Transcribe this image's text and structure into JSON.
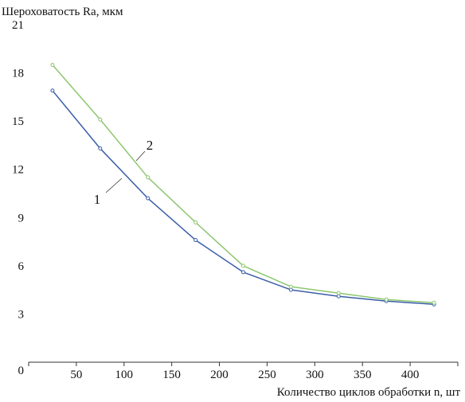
{
  "chart_data": {
    "type": "line",
    "ylabel": "Шероховатость Ra, мкм",
    "xlabel": "Количество циклов обработки n, шт",
    "xlim": [
      0,
      450
    ],
    "ylim": [
      0,
      21
    ],
    "xticks": [
      "50",
      "100",
      "150",
      "200",
      "250",
      "300",
      "350",
      "400"
    ],
    "xtick_values": [
      50,
      100,
      150,
      200,
      250,
      300,
      350,
      400
    ],
    "yticks": [
      "0",
      "3",
      "6",
      "9",
      "12",
      "15",
      "18",
      "21"
    ],
    "ytick_values": [
      0,
      3,
      6,
      9,
      12,
      15,
      18,
      21
    ],
    "grid": false,
    "legend": "none",
    "series": [
      {
        "name": "1",
        "color": "#3a5da8",
        "x": [
          25,
          75,
          125,
          175,
          225,
          275,
          325,
          375,
          425
        ],
        "y": [
          16.9,
          13.3,
          10.2,
          7.6,
          5.6,
          4.5,
          4.1,
          3.8,
          3.6
        ]
      },
      {
        "name": "2",
        "color": "#8cc66e",
        "x": [
          25,
          75,
          125,
          175,
          225,
          275,
          325,
          375,
          425
        ],
        "y": [
          18.5,
          15.1,
          11.5,
          8.7,
          6.0,
          4.7,
          4.3,
          3.9,
          3.7
        ]
      }
    ]
  }
}
